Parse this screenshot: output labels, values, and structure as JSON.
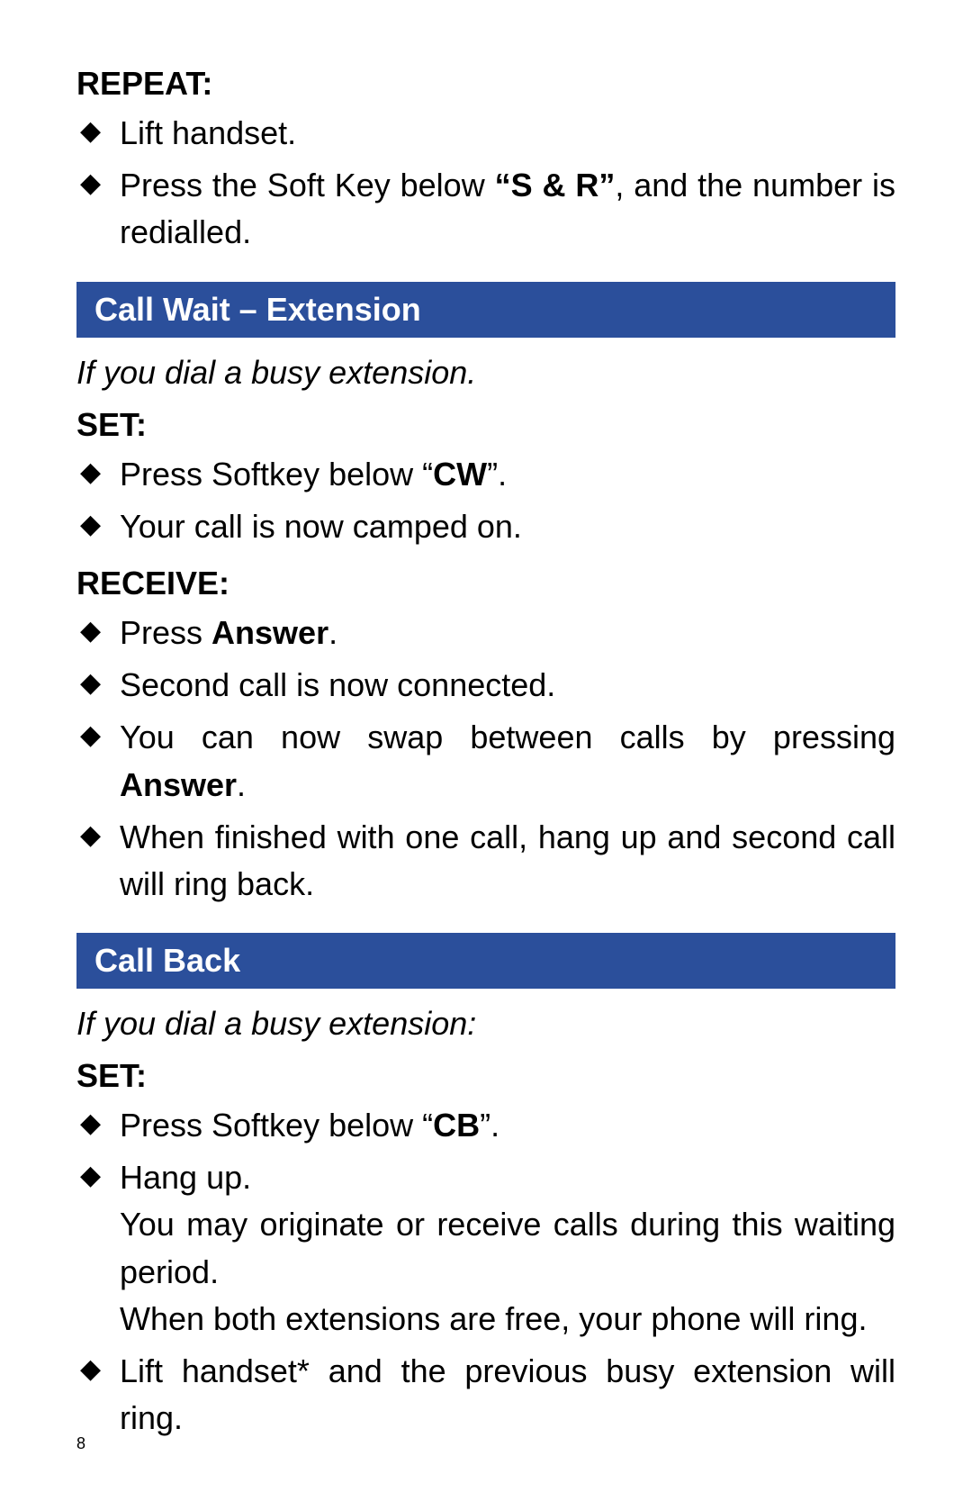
{
  "colors": {
    "bar_bg": "#2b4f9b",
    "bar_text": "#ffffff",
    "page_bg": "#ffffff",
    "text": "#000000"
  },
  "typography": {
    "body_fontsize_pt": 27,
    "heading_fontsize_pt": 27,
    "bar_fontsize_pt": 27,
    "pagenum_fontsize_pt": 14
  },
  "section1": {
    "heading": "REPEAT:",
    "items": {
      "0": {
        "text": "Lift handset."
      },
      "1": {
        "pre": "Press the Soft Key below ",
        "bold": "“S & R”",
        "post": ", and the number is redialled."
      }
    }
  },
  "section2": {
    "bar": "Call Wait – Extension",
    "intro": "If you dial a busy extension.",
    "sub1_heading": "SET:",
    "sub1_items": {
      "0": {
        "pre": "Press Softkey below “",
        "bold": "CW",
        "post": "”."
      },
      "1": {
        "text": "Your call is now camped on."
      }
    },
    "sub2_heading": "RECEIVE:",
    "sub2_items": {
      "0": {
        "pre": "Press ",
        "bold": "Answer",
        "post": "."
      },
      "1": {
        "text": "Second call is now connected."
      },
      "2": {
        "pre": "You can now swap between calls by pressing ",
        "bold": "Answer",
        "post": "."
      },
      "3": {
        "text": "When finished with one call, hang up and second call will ring back."
      }
    }
  },
  "section3": {
    "bar": "Call Back",
    "intro": "If you dial a busy extension:",
    "sub1_heading": "SET:",
    "sub1_items": {
      "0": {
        "pre": "Press Softkey below “",
        "bold": "CB",
        "post": "”."
      },
      "1": {
        "text": "Hang up.",
        "cont1": "You may originate or receive calls during this waiting period.",
        "cont2": "When both extensions are free, your phone will ring."
      },
      "2": {
        "text": "Lift handset* and the previous busy extension will ring."
      }
    }
  },
  "page_number": "8"
}
